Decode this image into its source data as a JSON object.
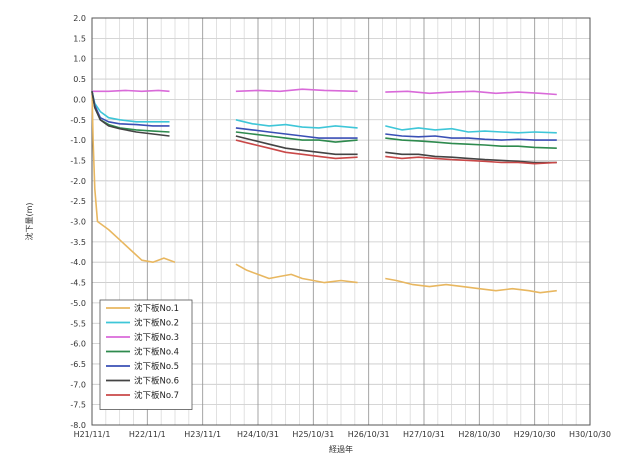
{
  "chart_data": {
    "type": "line",
    "title": "",
    "xlabel": "経過年",
    "ylabel": "沈下量(m)",
    "ylim": [
      -8.0,
      2.0
    ],
    "y_ticks": [
      "2.0",
      "1.5",
      "1.0",
      "0.5",
      "0.0",
      "-0.5",
      "-1.0",
      "-1.5",
      "-2.0",
      "-2.5",
      "-3.0",
      "-3.5",
      "-4.0",
      "-4.5",
      "-5.0",
      "-5.5",
      "-6.0",
      "-6.5",
      "-7.0",
      "-7.5",
      "-8.0"
    ],
    "x_ticks": [
      "H21/11/1",
      "H22/11/1",
      "H23/11/1",
      "H24/10/31",
      "H25/10/31",
      "H26/10/31",
      "H27/10/31",
      "H28/10/30",
      "H29/10/30",
      "H30/10/30"
    ],
    "grid": true,
    "legend_position": "bottom-left",
    "series": [
      {
        "name": "沈下板No.1",
        "color": "#e8b760",
        "segments": [
          [
            [
              0.0,
              0.2
            ],
            [
              0.02,
              -1.0
            ],
            [
              0.05,
              -2.2
            ],
            [
              0.1,
              -3.0
            ],
            [
              0.3,
              -3.2
            ],
            [
              0.5,
              -3.45
            ],
            [
              0.7,
              -3.7
            ],
            [
              0.9,
              -3.95
            ],
            [
              1.1,
              -4.0
            ],
            [
              1.3,
              -3.9
            ],
            [
              1.5,
              -4.0
            ]
          ],
          [
            [
              2.6,
              -4.05
            ],
            [
              2.8,
              -4.2
            ],
            [
              3.0,
              -4.3
            ],
            [
              3.2,
              -4.4
            ],
            [
              3.4,
              -4.35
            ],
            [
              3.6,
              -4.3
            ],
            [
              3.8,
              -4.4
            ],
            [
              4.0,
              -4.45
            ],
            [
              4.2,
              -4.5
            ],
            [
              4.5,
              -4.45
            ],
            [
              4.8,
              -4.5
            ]
          ],
          [
            [
              5.3,
              -4.4
            ],
            [
              5.5,
              -4.45
            ],
            [
              5.8,
              -4.55
            ],
            [
              6.1,
              -4.6
            ],
            [
              6.4,
              -4.55
            ],
            [
              6.7,
              -4.6
            ],
            [
              7.0,
              -4.65
            ],
            [
              7.3,
              -4.7
            ],
            [
              7.6,
              -4.65
            ],
            [
              7.9,
              -4.7
            ],
            [
              8.1,
              -4.75
            ],
            [
              8.4,
              -4.7
            ]
          ]
        ]
      },
      {
        "name": "沈下板No.2",
        "color": "#3ec6d8",
        "segments": [
          [
            [
              0.0,
              0.2
            ],
            [
              0.05,
              -0.1
            ],
            [
              0.15,
              -0.3
            ],
            [
              0.3,
              -0.45
            ],
            [
              0.5,
              -0.5
            ],
            [
              0.8,
              -0.55
            ],
            [
              1.1,
              -0.55
            ],
            [
              1.4,
              -0.55
            ]
          ],
          [
            [
              2.6,
              -0.5
            ],
            [
              2.9,
              -0.6
            ],
            [
              3.2,
              -0.65
            ],
            [
              3.5,
              -0.62
            ],
            [
              3.8,
              -0.68
            ],
            [
              4.1,
              -0.7
            ],
            [
              4.4,
              -0.65
            ],
            [
              4.8,
              -0.7
            ]
          ],
          [
            [
              5.3,
              -0.65
            ],
            [
              5.6,
              -0.75
            ],
            [
              5.9,
              -0.7
            ],
            [
              6.2,
              -0.75
            ],
            [
              6.5,
              -0.72
            ],
            [
              6.8,
              -0.8
            ],
            [
              7.1,
              -0.78
            ],
            [
              7.4,
              -0.8
            ],
            [
              7.7,
              -0.82
            ],
            [
              8.0,
              -0.8
            ],
            [
              8.4,
              -0.82
            ]
          ]
        ]
      },
      {
        "name": "沈下板No.3",
        "color": "#d96ad9",
        "segments": [
          [
            [
              0.0,
              0.2
            ],
            [
              0.3,
              0.2
            ],
            [
              0.6,
              0.22
            ],
            [
              0.9,
              0.2
            ],
            [
              1.2,
              0.22
            ],
            [
              1.4,
              0.2
            ]
          ],
          [
            [
              2.6,
              0.2
            ],
            [
              3.0,
              0.22
            ],
            [
              3.4,
              0.2
            ],
            [
              3.8,
              0.25
            ],
            [
              4.2,
              0.22
            ],
            [
              4.8,
              0.2
            ]
          ],
          [
            [
              5.3,
              0.18
            ],
            [
              5.7,
              0.2
            ],
            [
              6.1,
              0.15
            ],
            [
              6.5,
              0.18
            ],
            [
              6.9,
              0.2
            ],
            [
              7.3,
              0.15
            ],
            [
              7.7,
              0.18
            ],
            [
              8.1,
              0.15
            ],
            [
              8.4,
              0.12
            ]
          ]
        ]
      },
      {
        "name": "沈下板No.4",
        "color": "#2e8a4e",
        "segments": [
          [
            [
              0.0,
              0.2
            ],
            [
              0.05,
              -0.2
            ],
            [
              0.15,
              -0.5
            ],
            [
              0.3,
              -0.62
            ],
            [
              0.5,
              -0.7
            ],
            [
              0.8,
              -0.75
            ],
            [
              1.1,
              -0.78
            ],
            [
              1.4,
              -0.8
            ]
          ],
          [
            [
              2.6,
              -0.8
            ],
            [
              2.9,
              -0.85
            ],
            [
              3.2,
              -0.9
            ],
            [
              3.5,
              -0.95
            ],
            [
              3.8,
              -1.0
            ],
            [
              4.1,
              -1.0
            ],
            [
              4.4,
              -1.05
            ],
            [
              4.8,
              -1.0
            ]
          ],
          [
            [
              5.3,
              -0.95
            ],
            [
              5.6,
              -1.0
            ],
            [
              5.9,
              -1.02
            ],
            [
              6.2,
              -1.05
            ],
            [
              6.5,
              -1.08
            ],
            [
              6.8,
              -1.1
            ],
            [
              7.1,
              -1.12
            ],
            [
              7.4,
              -1.15
            ],
            [
              7.7,
              -1.15
            ],
            [
              8.0,
              -1.18
            ],
            [
              8.4,
              -1.2
            ]
          ]
        ]
      },
      {
        "name": "沈下板No.5",
        "color": "#3a4fb5",
        "segments": [
          [
            [
              0.0,
              0.2
            ],
            [
              0.05,
              -0.15
            ],
            [
              0.15,
              -0.45
            ],
            [
              0.3,
              -0.55
            ],
            [
              0.5,
              -0.6
            ],
            [
              0.8,
              -0.62
            ],
            [
              1.1,
              -0.65
            ],
            [
              1.4,
              -0.65
            ]
          ],
          [
            [
              2.6,
              -0.7
            ],
            [
              2.9,
              -0.75
            ],
            [
              3.2,
              -0.8
            ],
            [
              3.5,
              -0.85
            ],
            [
              3.8,
              -0.9
            ],
            [
              4.1,
              -0.95
            ],
            [
              4.4,
              -0.95
            ],
            [
              4.8,
              -0.95
            ]
          ],
          [
            [
              5.3,
              -0.85
            ],
            [
              5.6,
              -0.9
            ],
            [
              5.9,
              -0.92
            ],
            [
              6.2,
              -0.9
            ],
            [
              6.5,
              -0.95
            ],
            [
              6.8,
              -0.95
            ],
            [
              7.1,
              -0.98
            ],
            [
              7.4,
              -1.0
            ],
            [
              7.7,
              -0.98
            ],
            [
              8.0,
              -1.0
            ],
            [
              8.4,
              -1.0
            ]
          ]
        ]
      },
      {
        "name": "沈下板No.6",
        "color": "#444444",
        "segments": [
          [
            [
              0.0,
              0.2
            ],
            [
              0.05,
              -0.2
            ],
            [
              0.15,
              -0.5
            ],
            [
              0.3,
              -0.65
            ],
            [
              0.5,
              -0.72
            ],
            [
              0.8,
              -0.8
            ],
            [
              1.1,
              -0.85
            ],
            [
              1.4,
              -0.9
            ]
          ],
          [
            [
              2.6,
              -0.9
            ],
            [
              2.9,
              -1.0
            ],
            [
              3.2,
              -1.1
            ],
            [
              3.5,
              -1.2
            ],
            [
              3.8,
              -1.25
            ],
            [
              4.1,
              -1.3
            ],
            [
              4.4,
              -1.35
            ],
            [
              4.8,
              -1.35
            ]
          ],
          [
            [
              5.3,
              -1.3
            ],
            [
              5.6,
              -1.35
            ],
            [
              5.9,
              -1.35
            ],
            [
              6.2,
              -1.4
            ],
            [
              6.5,
              -1.42
            ],
            [
              6.8,
              -1.45
            ],
            [
              7.1,
              -1.48
            ],
            [
              7.4,
              -1.5
            ],
            [
              7.7,
              -1.52
            ],
            [
              8.0,
              -1.55
            ],
            [
              8.4,
              -1.55
            ]
          ]
        ]
      },
      {
        "name": "沈下板No.7",
        "color": "#c94848",
        "segments": [
          [],
          [
            [
              2.6,
              -1.0
            ],
            [
              2.9,
              -1.1
            ],
            [
              3.2,
              -1.2
            ],
            [
              3.5,
              -1.3
            ],
            [
              3.8,
              -1.35
            ],
            [
              4.1,
              -1.4
            ],
            [
              4.4,
              -1.45
            ],
            [
              4.8,
              -1.42
            ]
          ],
          [
            [
              5.3,
              -1.4
            ],
            [
              5.6,
              -1.45
            ],
            [
              5.9,
              -1.42
            ],
            [
              6.2,
              -1.45
            ],
            [
              6.5,
              -1.48
            ],
            [
              6.8,
              -1.5
            ],
            [
              7.1,
              -1.52
            ],
            [
              7.4,
              -1.55
            ],
            [
              7.7,
              -1.55
            ],
            [
              8.0,
              -1.58
            ],
            [
              8.4,
              -1.55
            ]
          ]
        ]
      }
    ]
  }
}
